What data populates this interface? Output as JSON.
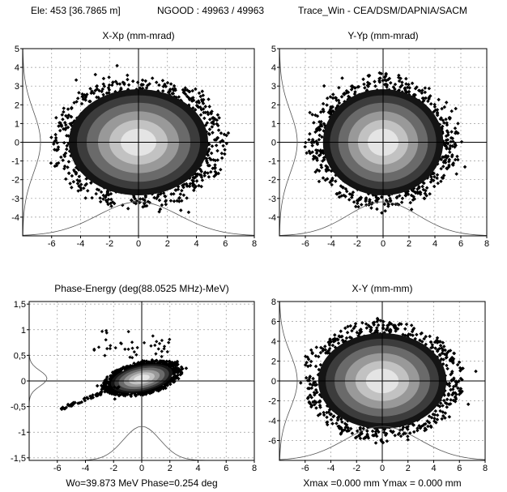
{
  "header": {
    "element": "Ele: 453 [36.7865 m]",
    "ngood": "NGOOD : 49963 / 49963",
    "program": "Trace_Win - CEA/DSM/DAPNIA/SACM"
  },
  "chart_data": [
    {
      "type": "scatter",
      "title": "X-Xp (mm-mrad)",
      "xlim": [
        -8,
        8
      ],
      "ylim": [
        -5,
        5
      ],
      "xticks": [
        -6,
        -4,
        -2,
        0,
        2,
        4,
        6,
        8
      ],
      "xtick_labels": [
        "-6",
        "-4",
        "-2",
        "0",
        "2",
        "4",
        "6",
        "8"
      ],
      "yticks": [
        5,
        4,
        3,
        2,
        1,
        0,
        -1,
        -2,
        -3,
        -4
      ],
      "ytick_labels": [
        "5",
        "4",
        "3",
        "2",
        "1",
        "0",
        "-1",
        "-2",
        "-3",
        "-4"
      ],
      "grid": true,
      "footer": "",
      "distribution": {
        "cx": 0,
        "cy": 0,
        "rx": 5.6,
        "ry": 3.3
      },
      "profiles": true
    },
    {
      "type": "scatter",
      "title": "Y-Yp (mm-mrad)",
      "xlim": [
        -8,
        8
      ],
      "ylim": [
        -5,
        5
      ],
      "xticks": [
        -6,
        -4,
        -2,
        0,
        2,
        4,
        6,
        8
      ],
      "xtick_labels": [
        "-6",
        "-4",
        "-2",
        "0",
        "2",
        "4",
        "6",
        "8"
      ],
      "yticks": [
        5,
        4,
        3,
        2,
        1,
        0,
        -1,
        -2,
        -3,
        -4
      ],
      "ytick_labels": [
        "5",
        "4",
        "3",
        "2",
        "1",
        "0",
        "-1",
        "-2",
        "-3",
        "-4"
      ],
      "grid": true,
      "footer": "",
      "distribution": {
        "cx": 0,
        "cy": 0,
        "rx": 5.4,
        "ry": 3.3
      },
      "profiles": true
    },
    {
      "type": "scatter",
      "title": "Phase-Energy (deg(88.0525 MHz)-MeV)",
      "xlim": [
        -8,
        8
      ],
      "ylim": [
        -1.55,
        1.55
      ],
      "xticks": [
        -6,
        -4,
        -2,
        0,
        2,
        4,
        6,
        8
      ],
      "xtick_labels": [
        "-6",
        "-4",
        "-2",
        "0",
        "2",
        "4",
        "6",
        "8"
      ],
      "yticks": [
        1.5,
        1,
        0.5,
        0,
        -0.5,
        -1,
        -1.5
      ],
      "ytick_labels": [
        "1,5",
        "1",
        "0,5",
        "0",
        "-0,5",
        "-1",
        "-1,5"
      ],
      "grid": true,
      "footer": "Wo=39.873 MeV  Phase=0.254 deg",
      "distribution": {
        "cx": 0,
        "cy": 0.05,
        "rx": 2.6,
        "ry": 0.3
      },
      "profiles": true
    },
    {
      "type": "scatter",
      "title": "X-Y  (mm-mm)",
      "xlim": [
        -8,
        8
      ],
      "ylim": [
        -8,
        8
      ],
      "xticks": [
        -6,
        -4,
        -2,
        0,
        2,
        4,
        6,
        8
      ],
      "xtick_labels": [
        "-6",
        "-4",
        "-2",
        "0",
        "2",
        "4",
        "6",
        "8"
      ],
      "yticks": [
        8,
        6,
        4,
        2,
        0,
        -2,
        -4,
        -6
      ],
      "ytick_labels": [
        "8",
        "6",
        "4",
        "2",
        "0",
        "-2",
        "-4",
        "-6"
      ],
      "grid": true,
      "footer": "Xmax =0.000 mm  Ymax = 0.000 mm",
      "distribution": {
        "cx": 0,
        "cy": 0,
        "rx": 5.8,
        "ry": 5.6
      },
      "profiles": true
    }
  ]
}
